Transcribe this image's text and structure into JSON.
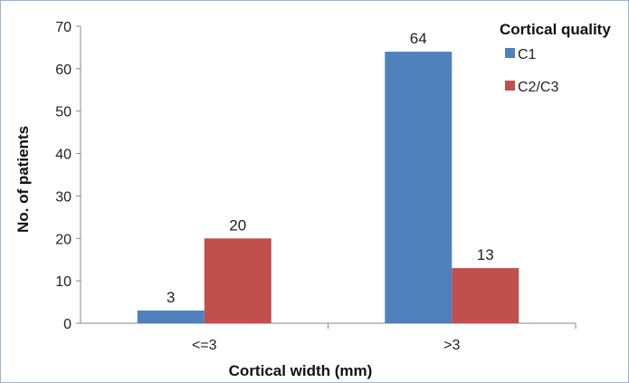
{
  "chart_data": {
    "type": "bar",
    "categories": [
      "<=3",
      ">3"
    ],
    "series": [
      {
        "name": "C1",
        "values": [
          3,
          64
        ],
        "color": "#4f81bd"
      },
      {
        "name": "C2/C3",
        "values": [
          20,
          13
        ],
        "color": "#c0504d"
      }
    ],
    "xlabel": "Cortical width (mm)",
    "ylabel": "No. of patients",
    "ylim": [
      0,
      70
    ],
    "yticks": [
      0,
      10,
      20,
      30,
      40,
      50,
      60,
      70
    ],
    "legend_title": "Cortical quality",
    "legend_position": "top-right",
    "grid": false,
    "data_labels": true
  }
}
